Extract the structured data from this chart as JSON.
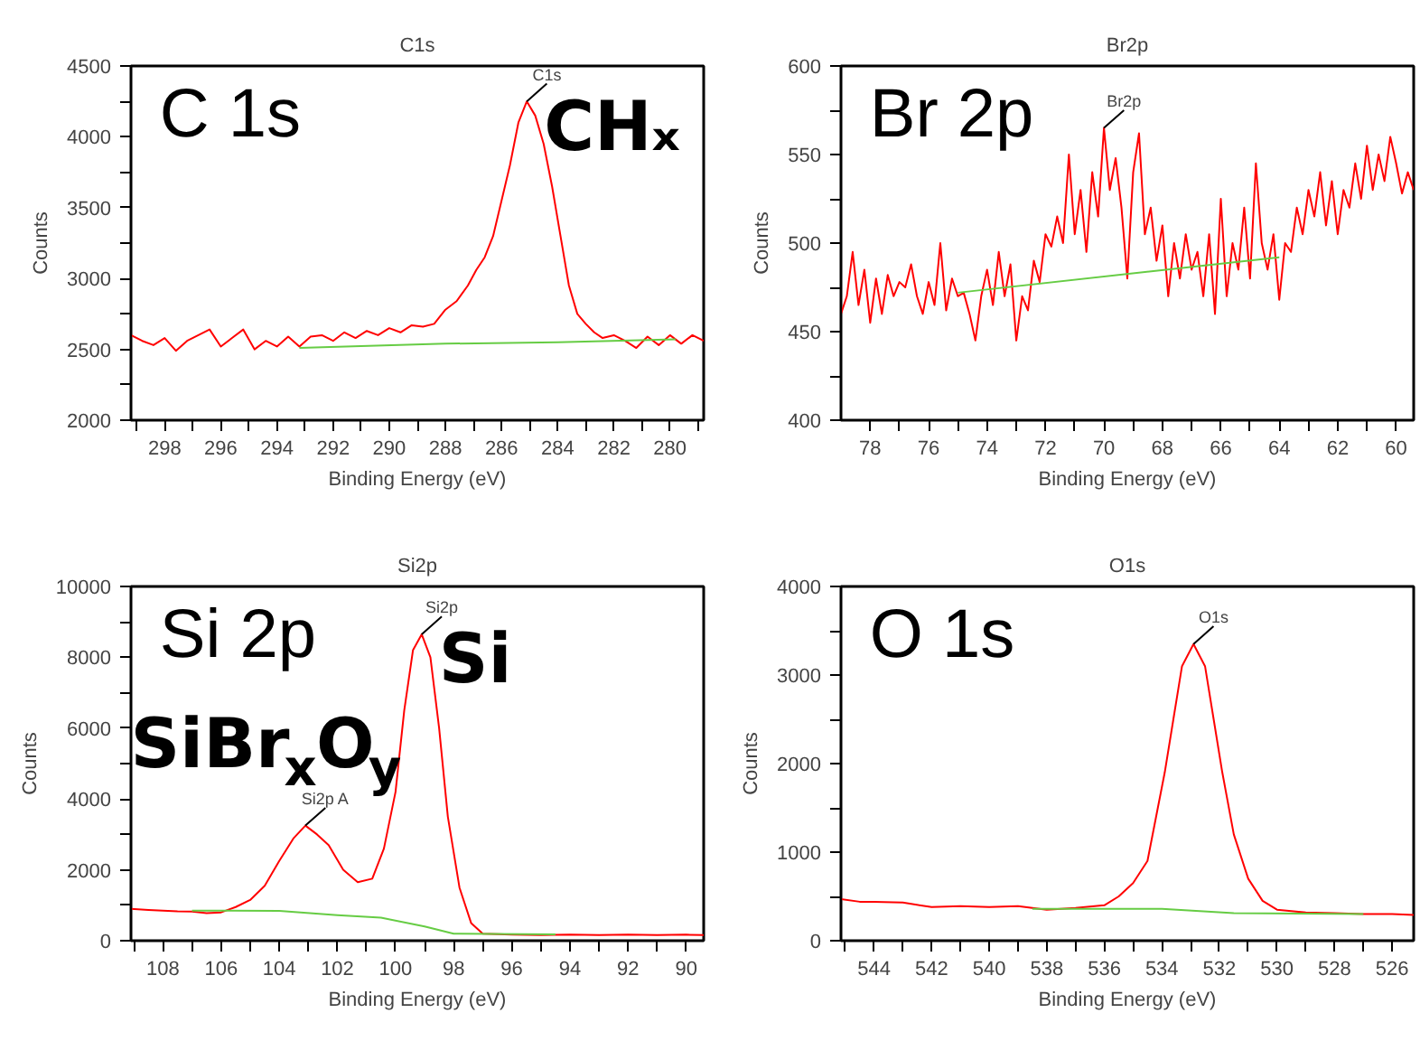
{
  "chart_data": [
    {
      "type": "line",
      "title": "C1s",
      "xlabel": "Binding Energy (eV)",
      "ylabel": "Counts",
      "xlim": [
        299.2,
        278.8
      ],
      "ylim": [
        2000,
        4500
      ],
      "xticks": [
        {
          "value": 299,
          "label": null
        },
        298,
        {
          "value": 297,
          "label": null
        },
        296,
        {
          "value": 295,
          "label": null
        },
        294,
        {
          "value": 293,
          "label": null
        },
        292,
        {
          "value": 291,
          "label": null
        },
        290,
        {
          "value": 289,
          "label": null
        },
        288,
        {
          "value": 287,
          "label": null
        },
        286,
        {
          "value": 285,
          "label": null
        },
        284,
        {
          "value": 283,
          "label": null
        },
        282,
        {
          "value": 281,
          "label": null
        },
        280,
        {
          "value": 279,
          "label": null
        }
      ],
      "yticks": [
        2000,
        {
          "value": 2250,
          "label": null
        },
        2500,
        {
          "value": 2750,
          "label": null
        },
        3000,
        {
          "value": 3250,
          "label": null
        },
        3500,
        {
          "value": 3750,
          "label": null
        },
        4000,
        {
          "value": 4250,
          "label": null
        },
        4500
      ],
      "series": [
        {
          "color": "#ff0000",
          "x": [
            299.2,
            298.8,
            298.4,
            298.0,
            297.6,
            297.2,
            296.8,
            296.4,
            296.0,
            295.6,
            295.2,
            294.8,
            294.4,
            294.0,
            293.6,
            293.2,
            292.8,
            292.4,
            292.0,
            291.6,
            291.2,
            290.8,
            290.4,
            290.0,
            289.6,
            289.2,
            288.8,
            288.4,
            288.0,
            287.6,
            287.2,
            286.9,
            286.6,
            286.3,
            286.0,
            285.7,
            285.4,
            285.1,
            284.8,
            284.5,
            284.2,
            283.9,
            283.6,
            283.3,
            283.0,
            282.7,
            282.4,
            282.0,
            281.6,
            281.2,
            280.8,
            280.4,
            280.0,
            279.6,
            279.2,
            278.8
          ],
          "values": [
            2600,
            2560,
            2530,
            2580,
            2490,
            2560,
            2600,
            2640,
            2520,
            2580,
            2640,
            2500,
            2560,
            2520,
            2590,
            2520,
            2590,
            2600,
            2560,
            2620,
            2580,
            2630,
            2600,
            2650,
            2620,
            2670,
            2660,
            2680,
            2780,
            2840,
            2950,
            3060,
            3150,
            3300,
            3550,
            3800,
            4100,
            4250,
            4150,
            3950,
            3650,
            3300,
            2950,
            2750,
            2680,
            2620,
            2580,
            2600,
            2560,
            2510,
            2590,
            2530,
            2600,
            2540,
            2600,
            2560
          ]
        },
        {
          "color": "#66cc44",
          "x": [
            293.2,
            288.0,
            284.0,
            279.8
          ],
          "values": [
            2510,
            2540,
            2550,
            2570
          ]
        }
      ],
      "annotations": [
        "C 1s",
        {
          "text": "C1s",
          "x": 285.1,
          "y": 4250
        },
        "CHₓ"
      ]
    },
    {
      "type": "line",
      "title": "Br2p",
      "xlabel": "Binding Energy (eV)",
      "ylabel": "Counts",
      "xlim": [
        79.0,
        59.4
      ],
      "ylim": [
        400,
        600
      ],
      "xticks": [
        78,
        {
          "value": 77,
          "label": null
        },
        76,
        {
          "value": 75,
          "label": null
        },
        74,
        {
          "value": 73,
          "label": null
        },
        72,
        {
          "value": 71,
          "label": null
        },
        70,
        {
          "value": 69,
          "label": null
        },
        68,
        {
          "value": 67,
          "label": null
        },
        66,
        {
          "value": 65,
          "label": null
        },
        64,
        {
          "value": 63,
          "label": null
        },
        62,
        {
          "value": 61,
          "label": null
        },
        60
      ],
      "yticks": [
        400,
        {
          "value": 425,
          "label": null
        },
        450,
        {
          "value": 475,
          "label": null
        },
        500,
        {
          "value": 525,
          "label": null
        },
        550,
        {
          "value": 575,
          "label": null
        },
        600
      ],
      "series": [
        {
          "color": "#ff0000",
          "x": [
            79.0,
            78.8,
            78.6,
            78.4,
            78.2,
            78.0,
            77.8,
            77.6,
            77.4,
            77.2,
            77.0,
            76.8,
            76.6,
            76.4,
            76.2,
            76.0,
            75.8,
            75.6,
            75.4,
            75.2,
            75.0,
            74.8,
            74.6,
            74.4,
            74.2,
            74.0,
            73.8,
            73.6,
            73.4,
            73.2,
            73.0,
            72.8,
            72.6,
            72.4,
            72.2,
            72.0,
            71.8,
            71.6,
            71.4,
            71.2,
            71.0,
            70.8,
            70.6,
            70.4,
            70.2,
            70.0,
            69.8,
            69.6,
            69.4,
            69.2,
            69.0,
            68.8,
            68.6,
            68.4,
            68.2,
            68.0,
            67.8,
            67.6,
            67.4,
            67.2,
            67.0,
            66.8,
            66.6,
            66.4,
            66.2,
            66.0,
            65.8,
            65.6,
            65.4,
            65.2,
            65.0,
            64.8,
            64.6,
            64.4,
            64.2,
            64.0,
            63.8,
            63.6,
            63.4,
            63.2,
            63.0,
            62.8,
            62.6,
            62.4,
            62.2,
            62.0,
            61.8,
            61.6,
            61.4,
            61.2,
            61.0,
            60.8,
            60.6,
            60.4,
            60.2,
            60.0,
            59.8,
            59.6,
            59.4
          ],
          "values": [
            460,
            470,
            495,
            465,
            485,
            455,
            480,
            460,
            482,
            470,
            478,
            475,
            488,
            470,
            460,
            478,
            465,
            500,
            462,
            480,
            470,
            472,
            460,
            445,
            470,
            485,
            465,
            495,
            470,
            488,
            445,
            470,
            462,
            490,
            478,
            505,
            498,
            515,
            500,
            550,
            505,
            530,
            495,
            540,
            515,
            565,
            530,
            548,
            520,
            480,
            540,
            562,
            505,
            520,
            490,
            510,
            470,
            500,
            480,
            505,
            485,
            495,
            470,
            505,
            460,
            525,
            470,
            500,
            485,
            520,
            480,
            545,
            500,
            485,
            505,
            468,
            500,
            495,
            520,
            505,
            530,
            515,
            540,
            510,
            535,
            505,
            530,
            520,
            545,
            525,
            555,
            530,
            550,
            535,
            560,
            545,
            528,
            540,
            530
          ]
        },
        {
          "color": "#66cc44",
          "x": [
            75.0,
            64.0
          ],
          "values": [
            472,
            492
          ]
        }
      ],
      "annotations": [
        "Br 2p",
        {
          "text": "Br2p",
          "x": 70.0,
          "y": 565
        }
      ]
    },
    {
      "type": "line",
      "title": "Si2p",
      "xlabel": "Binding Energy (eV)",
      "ylabel": "Counts",
      "xlim": [
        109.1,
        89.4
      ],
      "ylim": [
        0,
        10000
      ],
      "xticks": [
        {
          "value": 109,
          "label": null
        },
        108,
        {
          "value": 107,
          "label": null
        },
        106,
        {
          "value": 105,
          "label": null
        },
        104,
        {
          "value": 103,
          "label": null
        },
        102,
        {
          "value": 101,
          "label": null
        },
        100,
        {
          "value": 99,
          "label": null
        },
        98,
        {
          "value": 97,
          "label": null
        },
        96,
        {
          "value": 95,
          "label": null
        },
        94,
        {
          "value": 93,
          "label": null
        },
        92,
        {
          "value": 91,
          "label": null
        },
        90
      ],
      "yticks": [
        0,
        {
          "value": 1000,
          "label": null
        },
        2000,
        {
          "value": 3000,
          "label": null
        },
        4000,
        {
          "value": 5000,
          "label": null
        },
        6000,
        {
          "value": 7000,
          "label": null
        },
        8000,
        {
          "value": 9000,
          "label": null
        },
        10000
      ],
      "series": [
        {
          "color": "#ff0000",
          "x": [
            109.1,
            108.5,
            108.0,
            107.5,
            107.0,
            106.5,
            106.0,
            105.5,
            105.0,
            104.5,
            104.0,
            103.5,
            103.1,
            102.7,
            102.3,
            101.8,
            101.3,
            100.8,
            100.4,
            100.0,
            99.7,
            99.4,
            99.1,
            98.8,
            98.5,
            98.2,
            97.8,
            97.4,
            97.0,
            96.0,
            95.0,
            94.0,
            93.0,
            92.0,
            91.0,
            90.0,
            89.4
          ],
          "values": [
            900,
            870,
            850,
            830,
            820,
            780,
            800,
            950,
            1150,
            1550,
            2250,
            2900,
            3250,
            3000,
            2700,
            2000,
            1650,
            1750,
            2600,
            4200,
            6500,
            8200,
            8650,
            8000,
            6000,
            3500,
            1500,
            500,
            200,
            170,
            160,
            170,
            160,
            170,
            160,
            170,
            160
          ]
        },
        {
          "color": "#66cc44",
          "x": [
            107.0,
            104.0,
            102.0,
            100.5,
            99.0,
            98.0,
            94.5
          ],
          "values": [
            850,
            840,
            720,
            650,
            400,
            200,
            180
          ]
        }
      ],
      "annotations": [
        "Si 2p",
        {
          "text": "Si2p",
          "x": 99.1,
          "y": 8650
        },
        {
          "text": "Si2p A",
          "x": 103.1,
          "y": 3250
        },
        "Si",
        "SiBr$_{x}$O$_{y}$"
      ]
    },
    {
      "type": "line",
      "title": "O1s",
      "xlabel": "Binding Energy (eV)",
      "ylabel": "Counts",
      "xlim": [
        545.15,
        525.25
      ],
      "ylim": [
        0,
        4000
      ],
      "xticks": [
        {
          "value": 545,
          "label": null
        },
        544,
        {
          "value": 543,
          "label": null
        },
        542,
        {
          "value": 541,
          "label": null
        },
        540,
        {
          "value": 539,
          "label": null
        },
        538,
        {
          "value": 537,
          "label": null
        },
        536,
        {
          "value": 535,
          "label": null
        },
        534,
        {
          "value": 533,
          "label": null
        },
        532,
        {
          "value": 531,
          "label": null
        },
        530,
        {
          "value": 529,
          "label": null
        },
        528,
        {
          "value": 527,
          "label": null
        },
        526
      ],
      "yticks": [
        0,
        {
          "value": 500,
          "label": null
        },
        1000,
        {
          "value": 1500,
          "label": null
        },
        2000,
        {
          "value": 2500,
          "label": null
        },
        3000,
        {
          "value": 3500,
          "label": null
        },
        4000
      ],
      "series": [
        {
          "color": "#ff0000",
          "x": [
            545.15,
            544.5,
            544.0,
            543.0,
            542.0,
            541.0,
            540.0,
            539.0,
            538.0,
            537.0,
            536.0,
            535.5,
            535.0,
            534.5,
            534.2,
            533.9,
            533.6,
            533.3,
            532.9,
            532.5,
            532.2,
            531.9,
            531.5,
            531.0,
            530.5,
            530.0,
            529.0,
            528.0,
            527.0,
            526.0,
            525.25
          ],
          "values": [
            470,
            440,
            440,
            430,
            380,
            390,
            380,
            390,
            350,
            370,
            400,
            500,
            650,
            900,
            1400,
            1900,
            2500,
            3100,
            3350,
            3100,
            2500,
            1900,
            1200,
            700,
            450,
            350,
            320,
            310,
            300,
            300,
            290
          ]
        },
        {
          "color": "#66cc44",
          "x": [
            538.5,
            534.0,
            531.5,
            527.0
          ],
          "values": [
            360,
            360,
            310,
            300
          ]
        }
      ],
      "annotations": [
        "O 1s",
        {
          "text": "O1s",
          "x": 532.9,
          "y": 3350
        }
      ]
    }
  ]
}
